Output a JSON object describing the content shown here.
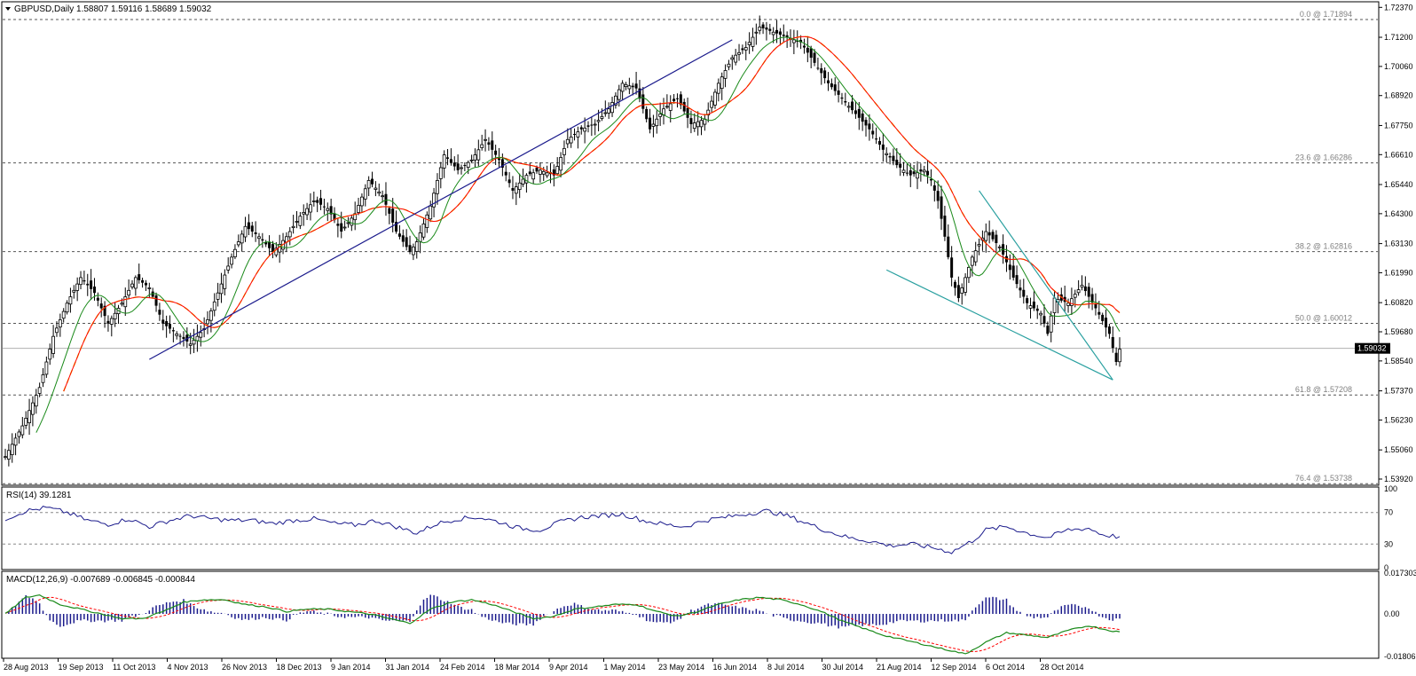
{
  "chart_data": [
    {
      "type": "candlestick",
      "title": "GBPUSD,Daily  1.58807 1.59116 1.58689 1.59032",
      "symbol": "GBPUSD,Daily",
      "ohlc_last": [
        "1.58807",
        "1.59116",
        "1.58689",
        "1.59032"
      ],
      "ylim": [
        1.5392,
        1.7245
      ],
      "y_ticks": [
        "1.72370",
        "1.71200",
        "1.70060",
        "1.68920",
        "1.67750",
        "1.66610",
        "1.65440",
        "1.64300",
        "1.63130",
        "1.61990",
        "1.60820",
        "1.59680",
        "1.58540",
        "1.57370",
        "1.56230",
        "1.55060",
        "1.53920"
      ],
      "current_price": "1.59032",
      "x_ticks": [
        "28 Aug 2013",
        "19 Sep 2013",
        "11 Oct 2013",
        "4 Nov 2013",
        "26 Nov 2013",
        "18 Dec 2013",
        "9 Jan 2014",
        "31 Jan 2014",
        "24 Feb 2014",
        "18 Mar 2014",
        "9 Apr 2014",
        "1 May 2014",
        "23 May 2014",
        "16 Jun 2014",
        "8 Jul 2014",
        "30 Jul 2014",
        "21 Aug 2014",
        "12 Sep 2014",
        "6 Oct 2014",
        "28 Oct 2014"
      ],
      "fibonacci": [
        {
          "label": "0.0 @ 1.71894",
          "value": 1.71894
        },
        {
          "label": "23.6 @ 1.66286",
          "value": 1.66286
        },
        {
          "label": "38.2 @ 1.62816",
          "value": 1.62816
        },
        {
          "label": "50.0 @ 1.60012",
          "value": 1.60012
        },
        {
          "label": "61.8 @ 1.57208",
          "value": 1.57208
        },
        {
          "label": "76.4 @ 1.53738",
          "value": 1.53738
        }
      ],
      "series_key_closes": [
        [
          0,
          1.548
        ],
        [
          5,
          1.56
        ],
        [
          10,
          1.575
        ],
        [
          14,
          1.595
        ],
        [
          18,
          1.608
        ],
        [
          22,
          1.618
        ],
        [
          26,
          1.612
        ],
        [
          30,
          1.6
        ],
        [
          34,
          1.608
        ],
        [
          38,
          1.618
        ],
        [
          42,
          1.614
        ],
        [
          46,
          1.6
        ],
        [
          50,
          1.596
        ],
        [
          54,
          1.592
        ],
        [
          58,
          1.598
        ],
        [
          62,
          1.612
        ],
        [
          66,
          1.626
        ],
        [
          70,
          1.638
        ],
        [
          74,
          1.634
        ],
        [
          78,
          1.628
        ],
        [
          82,
          1.634
        ],
        [
          86,
          1.642
        ],
        [
          90,
          1.648
        ],
        [
          94,
          1.645
        ],
        [
          98,
          1.636
        ],
        [
          102,
          1.643
        ],
        [
          106,
          1.656
        ],
        [
          110,
          1.65
        ],
        [
          114,
          1.636
        ],
        [
          118,
          1.628
        ],
        [
          120,
          1.632
        ],
        [
          124,
          1.646
        ],
        [
          128,
          1.666
        ],
        [
          132,
          1.66
        ],
        [
          136,
          1.664
        ],
        [
          140,
          1.672
        ],
        [
          144,
          1.664
        ],
        [
          148,
          1.652
        ],
        [
          152,
          1.658
        ],
        [
          156,
          1.66
        ],
        [
          160,
          1.658
        ],
        [
          164,
          1.672
        ],
        [
          168,
          1.676
        ],
        [
          172,
          1.678
        ],
        [
          176,
          1.684
        ],
        [
          180,
          1.694
        ],
        [
          184,
          1.692
        ],
        [
          188,
          1.676
        ],
        [
          192,
          1.684
        ],
        [
          196,
          1.688
        ],
        [
          200,
          1.678
        ],
        [
          204,
          1.68
        ],
        [
          208,
          1.694
        ],
        [
          212,
          1.704
        ],
        [
          216,
          1.708
        ],
        [
          220,
          1.716
        ],
        [
          224,
          1.714
        ],
        [
          228,
          1.712
        ],
        [
          232,
          1.71
        ],
        [
          236,
          1.702
        ],
        [
          240,
          1.694
        ],
        [
          244,
          1.688
        ],
        [
          248,
          1.682
        ],
        [
          252,
          1.676
        ],
        [
          256,
          1.668
        ],
        [
          260,
          1.662
        ],
        [
          264,
          1.658
        ],
        [
          268,
          1.66
        ],
        [
          270,
          1.656
        ],
        [
          272,
          1.648
        ],
        [
          274,
          1.634
        ],
        [
          276,
          1.618
        ],
        [
          278,
          1.61
        ],
        [
          282,
          1.626
        ],
        [
          286,
          1.636
        ],
        [
          290,
          1.63
        ],
        [
          294,
          1.618
        ],
        [
          298,
          1.608
        ],
        [
          302,
          1.604
        ],
        [
          304,
          1.596
        ],
        [
          306,
          1.61
        ],
        [
          310,
          1.608
        ],
        [
          314,
          1.615
        ],
        [
          318,
          1.606
        ],
        [
          322,
          1.596
        ],
        [
          324,
          1.585
        ],
        [
          325,
          1.59
        ]
      ],
      "trendlines": [
        {
          "name": "uptrend",
          "color": "#1b1b8c",
          "points": [
            [
              42,
              1.586
            ],
            [
              212,
              1.711
            ]
          ]
        },
        {
          "name": "channel-upper",
          "color": "#2aa0a0",
          "points": [
            [
              284,
              1.652
            ],
            [
              323,
              1.578
            ]
          ]
        },
        {
          "name": "channel-lower",
          "color": "#2aa0a0",
          "points": [
            [
              257,
              1.621
            ],
            [
              323,
              1.578
            ]
          ]
        }
      ],
      "colors": {
        "up": "#000000",
        "down": "#000000",
        "ma_fast": "#1a8a1a",
        "ma_slow": "#ff0000",
        "ma_mid": "#e0e000"
      }
    },
    {
      "type": "line",
      "title": "RSI(14) 39.1281",
      "ylim": [
        0,
        100
      ],
      "y_ticks": [
        "100",
        "70",
        "30",
        "0"
      ],
      "levels": [
        70,
        30
      ],
      "key_values": [
        [
          0,
          62
        ],
        [
          6,
          72
        ],
        [
          12,
          76
        ],
        [
          18,
          70
        ],
        [
          24,
          60
        ],
        [
          30,
          55
        ],
        [
          36,
          62
        ],
        [
          42,
          52
        ],
        [
          48,
          60
        ],
        [
          54,
          66
        ],
        [
          60,
          62
        ],
        [
          66,
          60
        ],
        [
          72,
          60
        ],
        [
          78,
          56
        ],
        [
          84,
          60
        ],
        [
          90,
          62
        ],
        [
          96,
          56
        ],
        [
          102,
          54
        ],
        [
          108,
          60
        ],
        [
          114,
          52
        ],
        [
          120,
          44
        ],
        [
          126,
          56
        ],
        [
          132,
          62
        ],
        [
          138,
          64
        ],
        [
          144,
          58
        ],
        [
          150,
          50
        ],
        [
          156,
          48
        ],
        [
          162,
          58
        ],
        [
          168,
          64
        ],
        [
          174,
          66
        ],
        [
          180,
          68
        ],
        [
          186,
          60
        ],
        [
          192,
          55
        ],
        [
          198,
          52
        ],
        [
          204,
          60
        ],
        [
          210,
          64
        ],
        [
          216,
          68
        ],
        [
          222,
          72
        ],
        [
          228,
          66
        ],
        [
          234,
          56
        ],
        [
          240,
          46
        ],
        [
          246,
          38
        ],
        [
          252,
          34
        ],
        [
          258,
          28
        ],
        [
          264,
          30
        ],
        [
          270,
          26
        ],
        [
          276,
          20
        ],
        [
          282,
          34
        ],
        [
          286,
          48
        ],
        [
          292,
          52
        ],
        [
          298,
          44
        ],
        [
          304,
          38
        ],
        [
          310,
          48
        ],
        [
          316,
          50
        ],
        [
          320,
          42
        ],
        [
          325,
          39
        ]
      ],
      "color": "#1b1b8c"
    },
    {
      "type": "macd",
      "title": "MACD(12,26,9) -0.007689 -0.006845 -0.000844",
      "ylim": [
        -0.018061,
        0.017303
      ],
      "y_ticks": [
        "0.017303",
        "0.00",
        "-0.018061"
      ],
      "key_values": [
        [
          0,
          0.0
        ],
        [
          6,
          0.007
        ],
        [
          10,
          0.008
        ],
        [
          16,
          0.004
        ],
        [
          22,
          0.002
        ],
        [
          28,
          0.0
        ],
        [
          34,
          -0.002
        ],
        [
          40,
          -0.002
        ],
        [
          46,
          0.001
        ],
        [
          52,
          0.005
        ],
        [
          58,
          0.006
        ],
        [
          64,
          0.006
        ],
        [
          70,
          0.004
        ],
        [
          76,
          0.003
        ],
        [
          82,
          0.001
        ],
        [
          88,
          0.002
        ],
        [
          94,
          0.002
        ],
        [
          100,
          0.001
        ],
        [
          106,
          0.0
        ],
        [
          112,
          -0.002
        ],
        [
          118,
          -0.004
        ],
        [
          124,
          0.002
        ],
        [
          130,
          0.005
        ],
        [
          136,
          0.006
        ],
        [
          142,
          0.004
        ],
        [
          148,
          0.001
        ],
        [
          154,
          -0.002
        ],
        [
          160,
          -0.001
        ],
        [
          166,
          0.002
        ],
        [
          172,
          0.003
        ],
        [
          178,
          0.004
        ],
        [
          184,
          0.004
        ],
        [
          190,
          0.001
        ],
        [
          196,
          -0.001
        ],
        [
          202,
          0.001
        ],
        [
          208,
          0.004
        ],
        [
          214,
          0.006
        ],
        [
          220,
          0.007
        ],
        [
          226,
          0.006
        ],
        [
          232,
          0.004
        ],
        [
          238,
          0.001
        ],
        [
          244,
          -0.003
        ],
        [
          250,
          -0.006
        ],
        [
          256,
          -0.009
        ],
        [
          262,
          -0.011
        ],
        [
          268,
          -0.013
        ],
        [
          274,
          -0.015
        ],
        [
          280,
          -0.017
        ],
        [
          286,
          -0.012
        ],
        [
          292,
          -0.008
        ],
        [
          298,
          -0.009
        ],
        [
          304,
          -0.01
        ],
        [
          310,
          -0.007
        ],
        [
          316,
          -0.005
        ],
        [
          322,
          -0.007
        ],
        [
          325,
          -0.0077
        ]
      ],
      "colors": {
        "macd": "#1a8a1a",
        "signal": "#ff0000",
        "histogram": "#1b1b8c"
      }
    }
  ]
}
